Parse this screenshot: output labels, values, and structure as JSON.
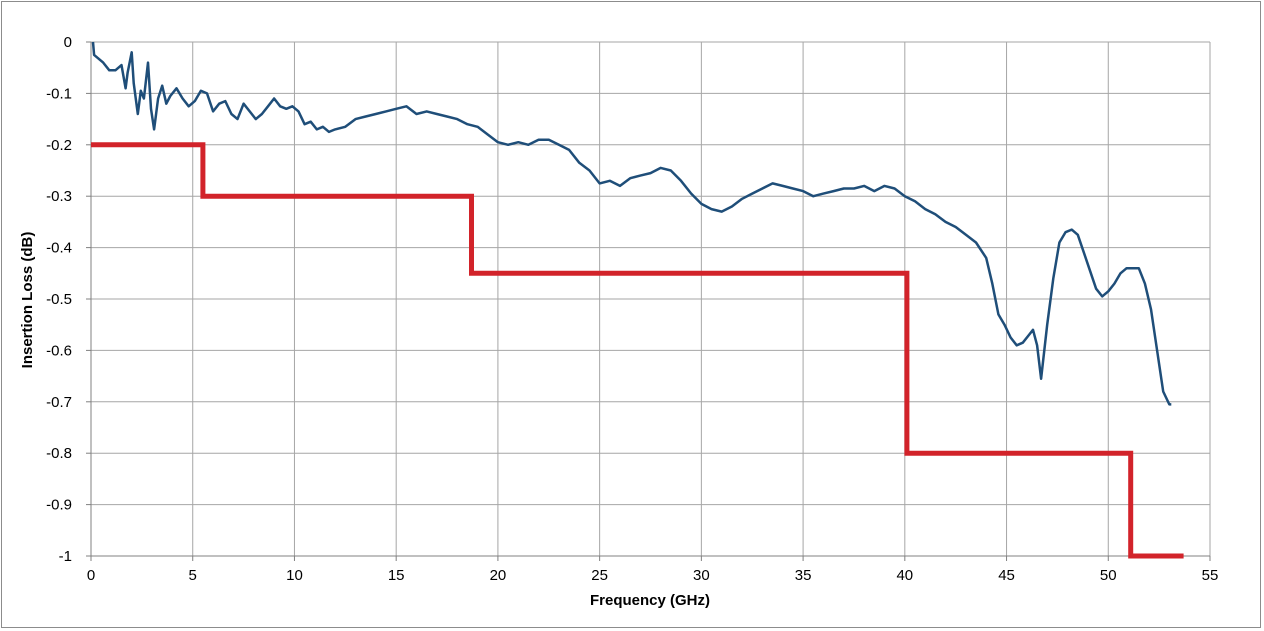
{
  "chart_data": {
    "type": "line",
    "title": "",
    "xlabel": "Frequency (GHz)",
    "ylabel": "Insertion Loss (dB)",
    "xlim": [
      0,
      55
    ],
    "ylim": [
      -1,
      0
    ],
    "x_ticks": [
      0,
      5,
      10,
      15,
      20,
      25,
      30,
      35,
      40,
      45,
      50,
      55
    ],
    "y_ticks": [
      0,
      -0.1,
      -0.2,
      -0.3,
      -0.4,
      -0.5,
      -0.6,
      -0.7,
      -0.8,
      -0.9,
      -1
    ],
    "x_tick_labels": [
      "0",
      "5",
      "10",
      "15",
      "20",
      "25",
      "30",
      "35",
      "40",
      "45",
      "50",
      "55"
    ],
    "y_tick_labels": [
      "0",
      "-0.1",
      "-0.2",
      "-0.3",
      "-0.4",
      "-0.5",
      "-0.6",
      "-0.7",
      "-0.8",
      "-0.9",
      "-1"
    ],
    "grid": true,
    "legend": "none",
    "series": [
      {
        "color": "#1f4e79",
        "x": [
          0.1,
          0.15,
          0.3,
          0.6,
          0.9,
          1.2,
          1.5,
          1.7,
          1.8,
          2.0,
          2.1,
          2.3,
          2.45,
          2.6,
          2.8,
          2.95,
          3.1,
          3.3,
          3.5,
          3.7,
          3.9,
          4.2,
          4.5,
          4.8,
          5.1,
          5.4,
          5.7,
          6.0,
          6.3,
          6.6,
          6.9,
          7.2,
          7.5,
          7.8,
          8.1,
          8.4,
          8.7,
          9.0,
          9.3,
          9.6,
          9.9,
          10.2,
          10.5,
          10.8,
          11.1,
          11.4,
          11.7,
          12.0,
          12.5,
          13.0,
          13.5,
          14.0,
          14.5,
          15.0,
          15.5,
          16.0,
          16.5,
          17.0,
          17.5,
          18.0,
          18.5,
          19.0,
          19.5,
          20.0,
          20.5,
          21.0,
          21.5,
          22.0,
          22.5,
          23.0,
          23.5,
          24.0,
          24.5,
          25.0,
          25.5,
          26.0,
          26.5,
          27.0,
          27.5,
          28.0,
          28.5,
          29.0,
          29.5,
          30.0,
          30.5,
          31.0,
          31.5,
          32.0,
          32.5,
          33.0,
          33.5,
          34.0,
          34.5,
          35.0,
          35.5,
          36.0,
          36.5,
          37.0,
          37.5,
          38.0,
          38.5,
          39.0,
          39.5,
          40.0,
          40.5,
          41.0,
          41.5,
          42.0,
          42.5,
          43.0,
          43.5,
          44.0,
          44.3,
          44.6,
          44.9,
          45.2,
          45.5,
          45.8,
          46.1,
          46.3,
          46.5,
          46.7,
          47.0,
          47.3,
          47.6,
          47.9,
          48.2,
          48.5,
          48.8,
          49.1,
          49.4,
          49.7,
          50.0,
          50.3,
          50.6,
          50.9,
          51.2,
          51.5,
          51.8,
          52.1,
          52.4,
          52.7,
          53.0,
          53.1
        ],
        "y": [
          0,
          -0.025,
          -0.03,
          -0.04,
          -0.055,
          -0.055,
          -0.045,
          -0.09,
          -0.06,
          -0.02,
          -0.08,
          -0.14,
          -0.095,
          -0.11,
          -0.04,
          -0.13,
          -0.17,
          -0.11,
          -0.085,
          -0.12,
          -0.105,
          -0.09,
          -0.11,
          -0.125,
          -0.115,
          -0.095,
          -0.1,
          -0.135,
          -0.12,
          -0.115,
          -0.14,
          -0.15,
          -0.12,
          -0.135,
          -0.15,
          -0.14,
          -0.125,
          -0.11,
          -0.125,
          -0.13,
          -0.125,
          -0.135,
          -0.16,
          -0.155,
          -0.17,
          -0.165,
          -0.175,
          -0.17,
          -0.165,
          -0.15,
          -0.145,
          -0.14,
          -0.135,
          -0.13,
          -0.125,
          -0.14,
          -0.135,
          -0.14,
          -0.145,
          -0.15,
          -0.16,
          -0.165,
          -0.18,
          -0.195,
          -0.2,
          -0.195,
          -0.2,
          -0.19,
          -0.19,
          -0.2,
          -0.21,
          -0.235,
          -0.25,
          -0.275,
          -0.27,
          -0.28,
          -0.265,
          -0.26,
          -0.255,
          -0.245,
          -0.25,
          -0.27,
          -0.295,
          -0.315,
          -0.325,
          -0.33,
          -0.32,
          -0.305,
          -0.295,
          -0.285,
          -0.275,
          -0.28,
          -0.285,
          -0.29,
          -0.3,
          -0.295,
          -0.29,
          -0.285,
          -0.285,
          -0.28,
          -0.29,
          -0.28,
          -0.285,
          -0.3,
          -0.31,
          -0.325,
          -0.335,
          -0.35,
          -0.36,
          -0.375,
          -0.39,
          -0.42,
          -0.47,
          -0.53,
          -0.55,
          -0.575,
          -0.59,
          -0.585,
          -0.57,
          -0.56,
          -0.59,
          -0.655,
          -0.55,
          -0.46,
          -0.39,
          -0.37,
          -0.365,
          -0.375,
          -0.41,
          -0.445,
          -0.48,
          -0.495,
          -0.485,
          -0.47,
          -0.45,
          -0.44,
          -0.44,
          -0.44,
          -0.47,
          -0.52,
          -0.6,
          -0.68,
          -0.705,
          -0.705
        ],
        "stroke_width": 2.5
      },
      {
        "color": "#d2232a",
        "step": true,
        "x": [
          0,
          5.5,
          5.5,
          18.7,
          18.7,
          40.1,
          40.1,
          51.1,
          51.1,
          53.7
        ],
        "y": [
          -0.2,
          -0.2,
          -0.3,
          -0.3,
          -0.45,
          -0.45,
          -0.8,
          -0.8,
          -1.0,
          -1.0
        ],
        "stroke_width": 5
      }
    ]
  }
}
